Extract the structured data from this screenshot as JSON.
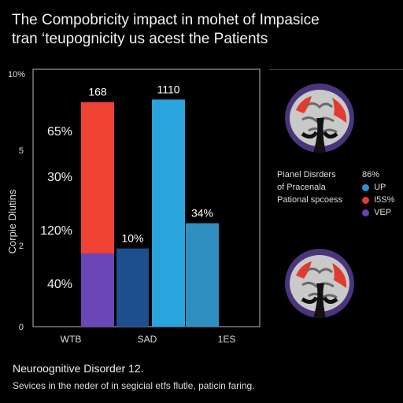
{
  "header": {
    "title_line1": "The Compobricity impact in mohet of Impasice",
    "title_line2": "tran ‘teupognicity us acest the Patients"
  },
  "chart_data": {
    "type": "bar",
    "ylabel": "Corpie Dlutins",
    "yticks": [
      "10%",
      "5",
      "2",
      "0"
    ],
    "inner_labels": [
      "65%",
      "30%",
      "120%",
      "40%"
    ],
    "categories": [
      "WTB",
      "SAD",
      "1ES"
    ],
    "bars": [
      {
        "category": "WTB",
        "segments": [
          {
            "value": 1.45,
            "color": "#6b46b8"
          },
          {
            "value": 3.0,
            "color": "#ee4233"
          }
        ],
        "label": "168"
      },
      {
        "category": "SAD",
        "segments": [
          {
            "value": 1.55,
            "color": "#1d4f8f"
          }
        ],
        "label": "10%"
      },
      {
        "category": "SAD",
        "segments": [
          {
            "value": 4.5,
            "color": "#29a4dd"
          }
        ],
        "label": "1110"
      },
      {
        "category": "1ES",
        "segments": [
          {
            "value": 2.05,
            "color": "#2f8fc0"
          }
        ],
        "label": "34%"
      }
    ],
    "ylim": [
      0,
      5.1
    ],
    "grid": false
  },
  "legend": {
    "rows": [
      {
        "label": "Pianel Disrders",
        "pct": "86%"
      },
      {
        "label": "of Pracenala",
        "item": "UP",
        "color": "#2a8fd6"
      },
      {
        "label": "Pational spcoess",
        "item": "I5S%",
        "color": "#e53a2f"
      },
      {
        "label": "",
        "item": "VEP",
        "color": "#6b3fb5"
      }
    ]
  },
  "footer": {
    "title": "Neuroognitive Disorder 12.",
    "subtitle": "Sevices in the neder of in segicial etfs flutle, paticin faring."
  },
  "colors": {
    "background": "#000000",
    "brain_red": "#e23b2e",
    "brain_purple": "#5a3d8f"
  },
  "icons": [
    "brain-scan-icon"
  ]
}
